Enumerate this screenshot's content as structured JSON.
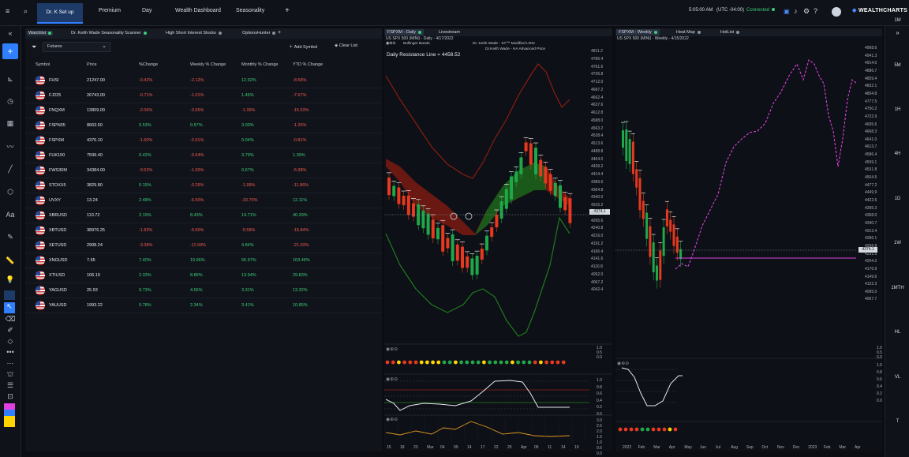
{
  "topbar": {
    "tabs": [
      "Dr. K Set up",
      "Premium",
      "Day",
      "Wealth Dashboard",
      "Seasonality"
    ],
    "add": "+",
    "time": "5:05:00 AM",
    "timezone": "(UTC -04:00)",
    "status": "Connected",
    "logo": "WEALTHCHARTS"
  },
  "watchlist": {
    "tabs": [
      "Watchlist",
      "Dr. Keith Wade Seasonality Scanner",
      "High Short Interest Stocks",
      "OptionsHunter"
    ],
    "filter_value": "Futures",
    "add_symbol": "Add Symbol",
    "clear_list": "Clear List",
    "columns": [
      "Symbol",
      "Price",
      "%Change",
      "Weekly % Change",
      "Monthly % Change",
      "YTD % Change"
    ],
    "rows": [
      {
        "sym": "FHSI",
        "price": "21247.00",
        "chg": "-0.42%",
        "wk": "-2.12%",
        "mo": "12.92%",
        "ytd": "-8.58%"
      },
      {
        "sym": "FJ225",
        "price": "26743.00",
        "chg": "-0.71%",
        "wk": "-1.01%",
        "mo": "1.46%",
        "ytd": "-7.67%"
      },
      {
        "sym": "FNQXM",
        "price": "13809.00",
        "chg": "-2.06%",
        "wk": "-3.65%",
        "mo": "-1.39%",
        "ytd": "-15.53%"
      },
      {
        "sym": "FSPN35",
        "price": "8663.50",
        "chg": "0.53%",
        "wk": "0.57%",
        "mo": "3.00%",
        "ytd": "-1.26%"
      },
      {
        "sym": "FSPXM",
        "price": "4376.10",
        "chg": "-1.60%",
        "wk": "-2.61%",
        "mo": "0.04%",
        "ytd": "-0.81%"
      },
      {
        "sym": "FUK100",
        "price": "7599.40",
        "chg": "0.42%",
        "wk": "-0.64%",
        "mo": "3.79%",
        "ytd": "1.30%"
      },
      {
        "sym": "FWS30M",
        "price": "34384.00",
        "chg": "-0.52%",
        "wk": "-1.00%",
        "mo": "0.67%",
        "ytd": "-5.98%"
      },
      {
        "sym": "STOXX5",
        "price": "3829.80",
        "chg": "0.15%",
        "wk": "-0.29%",
        "mo": "-1.99%",
        "ytd": "-11.86%"
      },
      {
        "sym": "UVXY",
        "price": "13.24",
        "chg": "2.48%",
        "wk": "-6.50%",
        "mo": "-33.70%",
        "ytd": "12.11%"
      },
      {
        "sym": "XBRUSD",
        "price": "110.72",
        "chg": "2.19%",
        "wk": "8.43%",
        "mo": "14.71%",
        "ytd": "40.39%"
      },
      {
        "sym": "XBTUSD",
        "price": "38976.25",
        "chg": "-1.83%",
        "wk": "-9.60%",
        "mo": "-5.58%",
        "ytd": "-15.84%"
      },
      {
        "sym": "XETUSD",
        "price": "2908.24",
        "chg": "-3.38%",
        "wk": "-11.59%",
        "mo": "4.84%",
        "ytd": "-21.03%"
      },
      {
        "sym": "XNGUSD",
        "price": "7.65",
        "chg": "7.40%",
        "wk": "19.96%",
        "mo": "55.97%",
        "ytd": "103.46%"
      },
      {
        "sym": "XTIUSD",
        "price": "106.19",
        "chg": "2.33%",
        "wk": "8.89%",
        "mo": "13.94%",
        "ytd": "29.83%"
      },
      {
        "sym": "YAGUSD",
        "price": "25.93",
        "chg": "0.73%",
        "wk": "4.65%",
        "mo": "3.31%",
        "ytd": "13.32%"
      },
      {
        "sym": "YAUUSD",
        "price": "1993.22",
        "chg": "0.78%",
        "wk": "2.34%",
        "mo": "3.41%",
        "ytd": "10.85%"
      }
    ]
  },
  "chart1": {
    "tabs": [
      "FSPXM - Daily",
      "Livestream"
    ],
    "subtitle": "US SPX 500 (MINI) - Daily - 4/17/2022",
    "study1": "Bollinger Bands",
    "study2": "Dr. Keith Wade - ST™ Modified LRSI",
    "study3": "Dr.Keith Wade - HA Advanced Price",
    "overlay_label": "Daily Resistance Line = 4458.52",
    "price_tag": "4374.1",
    "yaxis": [
      "4811.2",
      "4786.4",
      "4761.6",
      "4736.8",
      "4712.0",
      "4687.2",
      "4662.4",
      "4637.6",
      "4612.8",
      "4588.0",
      "4563.2",
      "4538.4",
      "4513.6",
      "4488.8",
      "4464.0",
      "4439.2",
      "4414.4",
      "4389.6",
      "4364.8",
      "4340.0",
      "4315.2",
      "4290.4",
      "4265.6",
      "4240.8",
      "4216.0",
      "4191.2",
      "4166.4",
      "4141.6",
      "4116.8",
      "4092.0",
      "4067.2",
      "4042.4"
    ],
    "xaxis": [
      "15",
      "18",
      "23",
      "Mar",
      "04",
      "09",
      "14",
      "17",
      "22",
      "25",
      "Apr",
      "06",
      "11",
      "14",
      "19"
    ],
    "osc_axis": [
      "1.0",
      "0.8",
      "0.6",
      "0.4",
      "0.2",
      "0.0"
    ],
    "ind_axis": [
      "1.0",
      "0.5",
      "0.0"
    ],
    "bottom_axis": [
      "3.0",
      "2.5",
      "2.0",
      "1.5",
      "1.0",
      "0.5",
      "0.0"
    ]
  },
  "chart2": {
    "tabs": [
      "FSPXM - Weekly",
      "Heat Map",
      "HotList"
    ],
    "subtitle": "US SPX 500 (MINI) - Weekly - 4/15/2022",
    "price_tag": "4374.1",
    "yaxis": [
      "4968.6",
      "4941.3",
      "4914.0",
      "4886.7",
      "4859.4",
      "4832.1",
      "4804.8",
      "4777.5",
      "4750.2",
      "4722.9",
      "4695.6",
      "4668.3",
      "4641.0",
      "4613.7",
      "4586.4",
      "4559.1",
      "4531.8",
      "4504.5",
      "4477.2",
      "4449.9",
      "4422.6",
      "4395.3",
      "4368.0",
      "4340.7",
      "4313.4",
      "4286.1",
      "4258.8",
      "4231.5",
      "4204.2",
      "4176.9",
      "4149.6",
      "4122.3",
      "4095.0",
      "4067.7"
    ],
    "xaxis": [
      "2022",
      "Feb",
      "Mar",
      "Apr",
      "May",
      "Jun",
      "Jul",
      "Aug",
      "Sep",
      "Oct",
      "Nov",
      "Dec",
      "2023",
      "Feb",
      "Mar",
      "Apr"
    ],
    "osc_axis": [
      "1.0",
      "0.8",
      "0.6",
      "0.4",
      "0.2",
      "0.0"
    ],
    "ind_axis": [
      "1.0",
      "0.5",
      "0.0"
    ]
  },
  "timeframes": [
    "1M",
    "5M",
    "1H",
    "4H",
    "1D",
    "1W",
    "1MTH",
    "HL",
    "VL",
    "T"
  ],
  "colors": {
    "accent": "#2f7fff",
    "up": "#1fa84a",
    "down": "#e6391f",
    "magenta": "#e040e0"
  }
}
